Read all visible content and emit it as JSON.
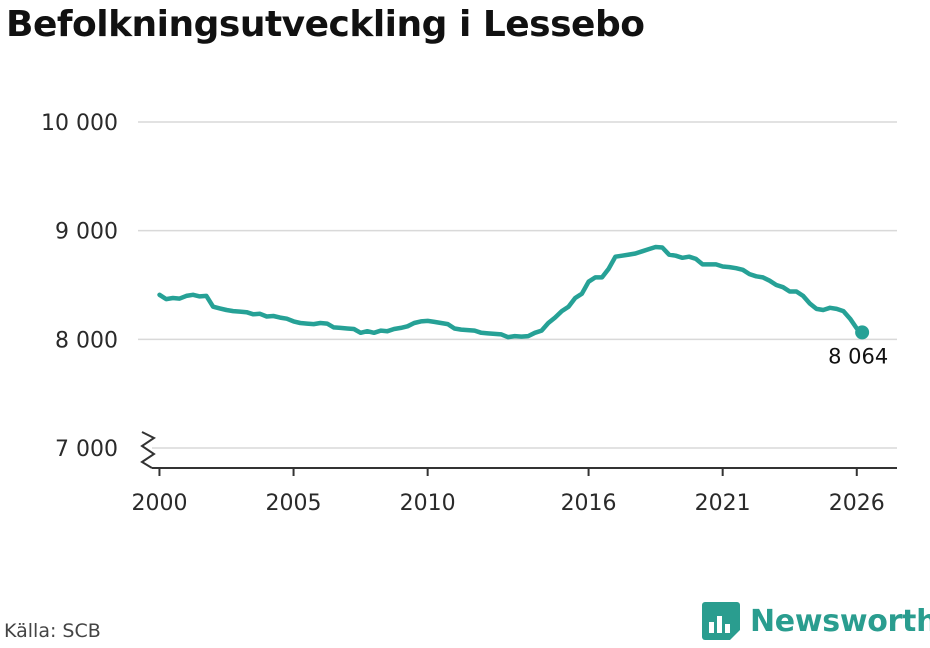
{
  "title": "Befolkningsutveckling i Lessebo",
  "source": "Källa: SCB",
  "brand": {
    "name": "Newsworthy",
    "icon": "newsworthy-logo-icon"
  },
  "colors": {
    "line": "#26a196",
    "grid": "#d9d9d9",
    "axis": "#333333",
    "brand": "#2a9d8f"
  },
  "chart_data": {
    "type": "line",
    "title": "Befolkningsutveckling i Lessebo",
    "xlabel": "",
    "ylabel": "",
    "xlim": [
      1999.2,
      2027.5
    ],
    "ylim": [
      7000,
      10000
    ],
    "y_axis_break": true,
    "grid": "horizontal",
    "x_ticks": [
      {
        "value": 2000,
        "label": "2000"
      },
      {
        "value": 2005,
        "label": "2005"
      },
      {
        "value": 2010,
        "label": "2010"
      },
      {
        "value": 2016,
        "label": "2016"
      },
      {
        "value": 2021,
        "label": "2021"
      },
      {
        "value": 2026,
        "label": "2026"
      }
    ],
    "y_ticks": [
      {
        "value": 7000,
        "label": "7 000"
      },
      {
        "value": 8000,
        "label": "8 000"
      },
      {
        "value": 9000,
        "label": "9 000"
      },
      {
        "value": 10000,
        "label": "10 000"
      }
    ],
    "end_label": "8 064",
    "series": [
      {
        "x": [
          2000.0,
          2000.25,
          2000.5,
          2000.75,
          2001.0,
          2001.25,
          2001.5,
          2001.75,
          2002.0,
          2002.25,
          2002.5,
          2002.75,
          2003.0,
          2003.25,
          2003.5,
          2003.75,
          2004.0,
          2004.25,
          2004.5,
          2004.75,
          2005.0,
          2005.25,
          2005.5,
          2005.75,
          2006.0,
          2006.25,
          2006.5,
          2006.75,
          2007.0,
          2007.25,
          2007.5,
          2007.75,
          2008.0,
          2008.25,
          2008.5,
          2008.75,
          2009.0,
          2009.25,
          2009.5,
          2009.75,
          2010.0,
          2010.25,
          2010.5,
          2010.75,
          2011.0,
          2011.25,
          2011.5,
          2011.75,
          2012.0,
          2012.25,
          2012.5,
          2012.75,
          2013.0,
          2013.25,
          2013.5,
          2013.75,
          2014.0,
          2014.25,
          2014.5,
          2014.75,
          2015.0,
          2015.25,
          2015.5,
          2015.75,
          2016.0,
          2016.25,
          2016.5,
          2016.75,
          2017.0,
          2017.25,
          2017.5,
          2017.75,
          2018.0,
          2018.25,
          2018.5,
          2018.75,
          2019.0,
          2019.25,
          2019.5,
          2019.75,
          2020.0,
          2020.25,
          2020.5,
          2020.75,
          2021.0,
          2021.25,
          2021.5,
          2021.75,
          2022.0,
          2022.25,
          2022.5,
          2022.75,
          2023.0,
          2023.25,
          2023.5,
          2023.75,
          2024.0,
          2024.25,
          2024.5,
          2024.75,
          2025.0,
          2025.25,
          2025.5,
          2025.75,
          2026.0,
          2026.2
        ],
        "y": [
          8410,
          8370,
          8380,
          8375,
          8400,
          8410,
          8395,
          8400,
          8300,
          8285,
          8270,
          8260,
          8255,
          8250,
          8230,
          8235,
          8210,
          8215,
          8200,
          8190,
          8165,
          8150,
          8145,
          8140,
          8150,
          8145,
          8110,
          8105,
          8100,
          8095,
          8060,
          8075,
          8060,
          8080,
          8075,
          8095,
          8105,
          8120,
          8150,
          8165,
          8170,
          8160,
          8150,
          8140,
          8100,
          8090,
          8085,
          8080,
          8060,
          8055,
          8050,
          8045,
          8020,
          8030,
          8025,
          8030,
          8060,
          8080,
          8150,
          8200,
          8260,
          8300,
          8380,
          8420,
          8530,
          8570,
          8570,
          8650,
          8760,
          8770,
          8780,
          8790,
          8810,
          8830,
          8850,
          8845,
          8780,
          8770,
          8750,
          8760,
          8740,
          8690,
          8690,
          8690,
          8670,
          8665,
          8655,
          8640,
          8600,
          8580,
          8570,
          8540,
          8500,
          8480,
          8440,
          8440,
          8400,
          8330,
          8280,
          8270,
          8290,
          8280,
          8260,
          8190,
          8100,
          8064
        ]
      }
    ]
  }
}
